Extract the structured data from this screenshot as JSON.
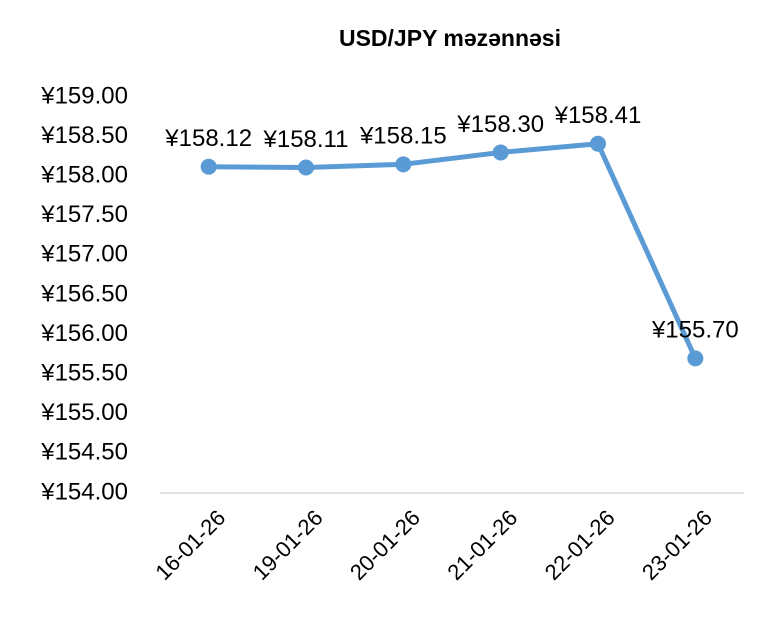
{
  "chart_data": {
    "type": "line",
    "title": "USD/JPY məzənnəsi",
    "categories": [
      "16-01-26",
      "19-01-26",
      "20-01-26",
      "21-01-26",
      "22-01-26",
      "23-01-26"
    ],
    "series": [
      {
        "name": "USD/JPY",
        "color": "#5b9bd5",
        "values": [
          158.12,
          158.11,
          158.15,
          158.3,
          158.41,
          155.7
        ],
        "value_labels": [
          "¥158.12",
          "¥158.11",
          "¥158.15",
          "¥158.30",
          "¥158.41",
          "¥155.70"
        ]
      }
    ],
    "ylim": [
      154,
      159
    ],
    "yticks": [
      {
        "value": 154,
        "label": "¥154.00"
      },
      {
        "value": 154.5,
        "label": "¥154.50"
      },
      {
        "value": 155,
        "label": "¥155.00"
      },
      {
        "value": 155.5,
        "label": "¥155.50"
      },
      {
        "value": 156,
        "label": "¥156.00"
      },
      {
        "value": 156.5,
        "label": "¥156.50"
      },
      {
        "value": 157,
        "label": "¥157.00"
      },
      {
        "value": 157.5,
        "label": "¥157.50"
      },
      {
        "value": 158,
        "label": "¥158.00"
      },
      {
        "value": 158.5,
        "label": "¥158.50"
      },
      {
        "value": 159,
        "label": "¥159.00"
      }
    ],
    "grid": false
  }
}
